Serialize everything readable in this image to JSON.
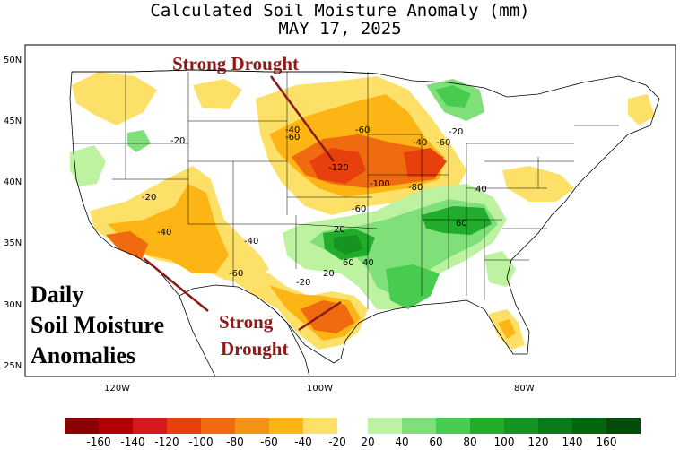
{
  "title": "Calculated Soil Moisture Anomaly (mm)",
  "date": "MAY 17, 2025",
  "inset_text": [
    "Daily",
    "Soil Moisture",
    "Anomalies"
  ],
  "callouts": [
    "Strong Drought",
    "Strong",
    "Drought"
  ],
  "lat_labels": [
    "50N",
    "45N",
    "40N",
    "35N",
    "30N",
    "25N"
  ],
  "lon_labels": [
    "120W",
    "100W",
    "80W"
  ],
  "contour_labels": [
    "-20",
    "-20",
    "-20",
    "-20",
    "-40",
    "-40",
    "-40",
    "-40",
    "-60",
    "-60",
    "-60",
    "-60",
    "-60",
    "-80",
    "-100",
    "-120",
    "40",
    "40",
    "60",
    "60",
    "20",
    "20"
  ],
  "legend": {
    "colors": [
      "#8b0000",
      "#b30000",
      "#d7191c",
      "#e8400c",
      "#f06a10",
      "#f79219",
      "#fdb515",
      "#fde068",
      "#bdf2a0",
      "#7fe07a",
      "#47cc4f",
      "#1fad2b",
      "#169421",
      "#0b7a17",
      "#066610",
      "#004c08"
    ],
    "labels": [
      "-160",
      "-140",
      "-120",
      "-100",
      "-80",
      "-60",
      "-40",
      "-20",
      "20",
      "40",
      "60",
      "80",
      "100",
      "120",
      "140",
      "160"
    ]
  }
}
